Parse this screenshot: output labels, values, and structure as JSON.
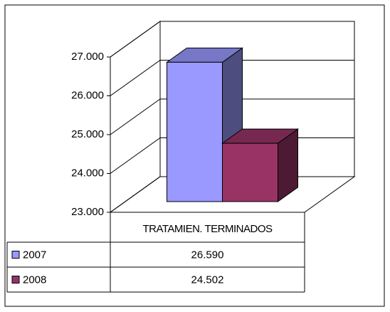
{
  "chart_data": {
    "type": "bar3d",
    "categories": [
      "TRATAMIEN. TERMINADOS"
    ],
    "series": [
      {
        "name": "2007",
        "color": "#9999ff",
        "values": [
          26590
        ],
        "value_labels": [
          "26.590"
        ]
      },
      {
        "name": "2008",
        "color": "#993366",
        "values": [
          24502
        ],
        "value_labels": [
          "24.502"
        ]
      }
    ],
    "ylim": [
      23000,
      27000
    ],
    "yticks": [
      {
        "value": 23000,
        "label": "23.000"
      },
      {
        "value": 24000,
        "label": "24.000"
      },
      {
        "value": 25000,
        "label": "25.000"
      },
      {
        "value": 26000,
        "label": "26.000"
      },
      {
        "value": 27000,
        "label": "27.000"
      }
    ],
    "grid": true,
    "legend": "table"
  }
}
